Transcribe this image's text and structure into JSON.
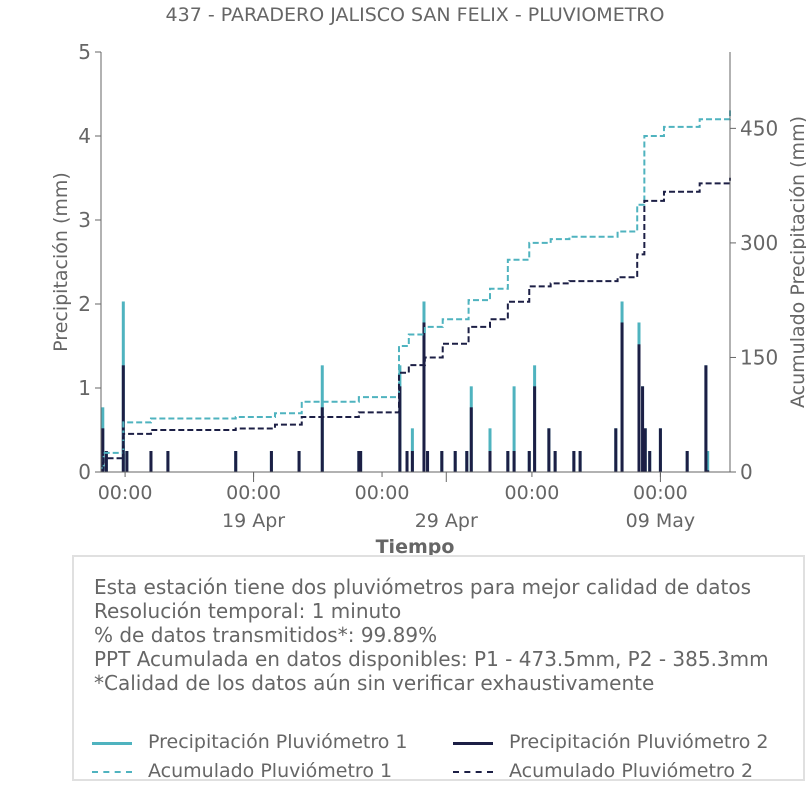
{
  "colors": {
    "p1": "#4fb3bf",
    "p2": "#1c1f45",
    "text": "#666666",
    "axis": "#666666"
  },
  "chart_data": {
    "type": "bar",
    "title": "437 - PARADERO JALISCO SAN FELIX - PLUVIOMETRO",
    "xlabel": "Tiempo",
    "ylabel": "Precipitación (mm)",
    "y2label": "Acumulado Precipitación (mm)",
    "ylim": [
      0,
      5
    ],
    "y2lim": [
      0,
      550
    ],
    "yticks": [
      "0",
      "1",
      "2",
      "3",
      "4",
      "5"
    ],
    "y2ticks": [
      "0",
      "150",
      "300",
      "450"
    ],
    "y2tick_values": [
      0,
      150,
      300,
      450
    ],
    "xlim": [
      "2025-04-13 21:00",
      "2025-05-13 06:00"
    ],
    "xticks_top": [
      "00:00",
      "00:00",
      "00:00",
      "00:00",
      "00:00"
    ],
    "xticks_top_dates": [
      "2025-04-15 00:00",
      "2025-04-21 00:00",
      "2025-04-27 00:00",
      "2025-05-04 00:00",
      "2025-05-10 00:00"
    ],
    "xticks_bottom": [
      "19 Apr",
      "29 Apr",
      "09 May"
    ],
    "xticks_bottom_dates": [
      "2025-04-21 00:00",
      "2025-04-30 00:00",
      "2025-05-10 00:00"
    ],
    "grid": false,
    "series": [
      {
        "name": "Precipitación Pluviómetro 1",
        "kind": "bar",
        "x": [
          "2025-04-13 23:00",
          "2025-04-14 03:00",
          "2025-04-14 22:00",
          "2025-04-15 02:00",
          "2025-04-16 05:00",
          "2025-04-17 00:00",
          "2025-04-20 04:00",
          "2025-04-21 20:00",
          "2025-04-23 03:00",
          "2025-04-24 05:00",
          "2025-04-25 22:00",
          "2025-04-26 00:00",
          "2025-04-27 20:00",
          "2025-04-28 04:00",
          "2025-04-28 10:00",
          "2025-04-28 23:00",
          "2025-04-29 03:00",
          "2025-04-29 19:00",
          "2025-04-30 10:00",
          "2025-04-30 23:00",
          "2025-05-01 04:00",
          "2025-05-02 01:00",
          "2025-05-02 21:00",
          "2025-05-03 04:00",
          "2025-05-03 21:00",
          "2025-05-04 03:00",
          "2025-05-04 19:00",
          "2025-05-05 02:00",
          "2025-05-05 23:00",
          "2025-05-06 06:00",
          "2025-05-07 22:00",
          "2025-05-08 05:00",
          "2025-05-09 00:00",
          "2025-05-09 04:00",
          "2025-05-09 07:00",
          "2025-05-09 12:00",
          "2025-05-10 00:00",
          "2025-05-11 06:00",
          "2025-05-12 03:00",
          "2025-05-12 05:00"
        ],
        "values": [
          0.77,
          0.25,
          2.03,
          0.25,
          0.25,
          0.25,
          0.25,
          0.25,
          0.25,
          1.27,
          0.25,
          0.25,
          1.27,
          0.25,
          0.52,
          2.03,
          0.25,
          0.25,
          0.25,
          0.25,
          1.02,
          0.52,
          0.25,
          1.02,
          0.25,
          1.27,
          0.52,
          0.25,
          0.25,
          0.25,
          0.52,
          2.03,
          1.78,
          1.02,
          0.52,
          0.25,
          0.52,
          0.25,
          1.27,
          0.25
        ]
      },
      {
        "name": "Precipitación Pluviómetro 2",
        "kind": "bar",
        "x": [
          "2025-04-13 23:00",
          "2025-04-14 03:00",
          "2025-04-14 22:00",
          "2025-04-15 02:00",
          "2025-04-16 05:00",
          "2025-04-17 00:00",
          "2025-04-20 04:00",
          "2025-04-21 20:00",
          "2025-04-23 03:00",
          "2025-04-24 05:00",
          "2025-04-25 22:00",
          "2025-04-26 00:00",
          "2025-04-27 20:00",
          "2025-04-28 04:00",
          "2025-04-28 10:00",
          "2025-04-28 23:00",
          "2025-04-29 03:00",
          "2025-04-29 19:00",
          "2025-04-30 10:00",
          "2025-04-30 23:00",
          "2025-05-01 04:00",
          "2025-05-02 01:00",
          "2025-05-02 21:00",
          "2025-05-03 04:00",
          "2025-05-03 21:00",
          "2025-05-04 03:00",
          "2025-05-04 19:00",
          "2025-05-05 02:00",
          "2025-05-05 23:00",
          "2025-05-06 06:00",
          "2025-05-07 22:00",
          "2025-05-08 05:00",
          "2025-05-09 00:00",
          "2025-05-09 04:00",
          "2025-05-09 07:00",
          "2025-05-09 12:00",
          "2025-05-10 00:00",
          "2025-05-11 06:00",
          "2025-05-12 03:00",
          "2025-05-12 05:00"
        ],
        "values": [
          0.52,
          0.25,
          1.27,
          0.25,
          0.25,
          0.25,
          0.25,
          0.25,
          0.25,
          0.77,
          0.25,
          0.25,
          1.02,
          0.25,
          0.25,
          1.78,
          0.25,
          0.25,
          0.25,
          0.25,
          0.77,
          0.25,
          0.25,
          0.25,
          0.25,
          1.02,
          0.52,
          0.25,
          0.25,
          0.25,
          0.52,
          1.78,
          1.52,
          1.02,
          0.52,
          0.25,
          0.52,
          0.25,
          1.27,
          0.02
        ]
      },
      {
        "name": "Acumulado Pluviómetro 1",
        "kind": "step",
        "x": [
          "2025-04-13 21:00",
          "2025-04-14 00:00",
          "2025-04-14 22:00",
          "2025-04-16 05:00",
          "2025-04-20 04:00",
          "2025-04-22 00:00",
          "2025-04-23 06:00",
          "2025-04-25 22:00",
          "2025-04-27 19:00",
          "2025-04-28 06:00",
          "2025-04-29 00:00",
          "2025-04-29 20:00",
          "2025-05-01 01:00",
          "2025-05-02 01:00",
          "2025-05-02 21:00",
          "2025-05-03 21:00",
          "2025-05-04 21:00",
          "2025-05-05 18:00",
          "2025-05-08 00:00",
          "2025-05-08 22:00",
          "2025-05-09 06:00",
          "2025-05-10 04:00",
          "2025-05-11 20:00",
          "2025-05-13 06:00"
        ],
        "values": [
          5,
          25,
          65,
          70,
          72,
          77,
          92,
          98,
          165,
          180,
          190,
          200,
          225,
          240,
          278,
          300,
          305,
          308,
          315,
          350,
          440,
          452,
          462,
          473.5
        ]
      },
      {
        "name": "Acumulado Pluviómetro 2",
        "kind": "step",
        "x": [
          "2025-04-13 21:00",
          "2025-04-14 00:00",
          "2025-04-14 22:00",
          "2025-04-16 05:00",
          "2025-04-20 04:00",
          "2025-04-22 00:00",
          "2025-04-23 06:00",
          "2025-04-25 22:00",
          "2025-04-27 19:00",
          "2025-04-28 06:00",
          "2025-04-29 00:00",
          "2025-04-29 20:00",
          "2025-05-01 01:00",
          "2025-05-02 01:00",
          "2025-05-02 21:00",
          "2025-05-03 21:00",
          "2025-05-04 21:00",
          "2025-05-05 18:00",
          "2025-05-08 00:00",
          "2025-05-08 22:00",
          "2025-05-09 06:00",
          "2025-05-10 04:00",
          "2025-05-11 20:00",
          "2025-05-13 06:00"
        ],
        "values": [
          3,
          18,
          50,
          55,
          57,
          62,
          72,
          78,
          130,
          140,
          150,
          168,
          190,
          200,
          223,
          243,
          247,
          250,
          255,
          285,
          355,
          367,
          378,
          385.3
        ]
      }
    ]
  },
  "info": {
    "lines": [
      "Esta estación tiene dos pluviómetros para mejor calidad de datos",
      "Resolución temporal: 1 minuto",
      "% de datos transmitidos*: 99.89%",
      "PPT Acumulada en datos disponibles: P1 - 473.5mm, P2 - 385.3mm",
      "*Calidad de los datos aún sin verificar exhaustivamente"
    ]
  },
  "legend": [
    {
      "label": "Precipitación Pluviómetro 1",
      "color": "#4fb3bf",
      "style": "solid"
    },
    {
      "label": "Precipitación Pluviómetro 2",
      "color": "#1c1f45",
      "style": "solid"
    },
    {
      "label": "Acumulado Pluviómetro 1",
      "color": "#4fb3bf",
      "style": "dashed"
    },
    {
      "label": "Acumulado Pluviómetro 2",
      "color": "#1c1f45",
      "style": "dashed"
    }
  ]
}
